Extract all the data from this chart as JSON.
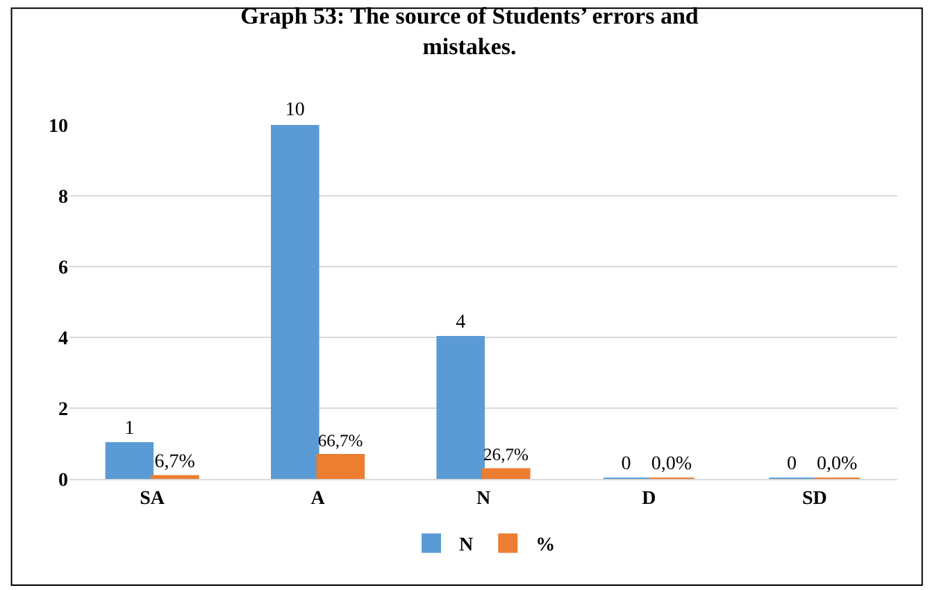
{
  "chart_data": {
    "type": "bar",
    "title": "Graph 53: The source of Students’ errors and mistakes.",
    "categories": [
      "SA",
      "A",
      "N",
      "D",
      "SD"
    ],
    "series": [
      {
        "name": "N",
        "color": "#5b9bd5",
        "values": [
          1,
          10,
          4,
          0,
          0
        ],
        "value_labels": [
          "1",
          "10",
          "4",
          "0",
          "0"
        ]
      },
      {
        "name": "%",
        "color": "#ed7d31",
        "values": [
          0.067,
          0.667,
          0.267,
          0,
          0
        ],
        "value_labels": [
          "6,7%",
          "66,7%",
          "26,7%",
          "0,0%",
          "0,0%"
        ]
      }
    ],
    "ylim": [
      0,
      10
    ],
    "yticks": [
      0,
      2,
      4,
      6,
      8,
      10
    ],
    "grid": "y",
    "legend": "bottom"
  }
}
